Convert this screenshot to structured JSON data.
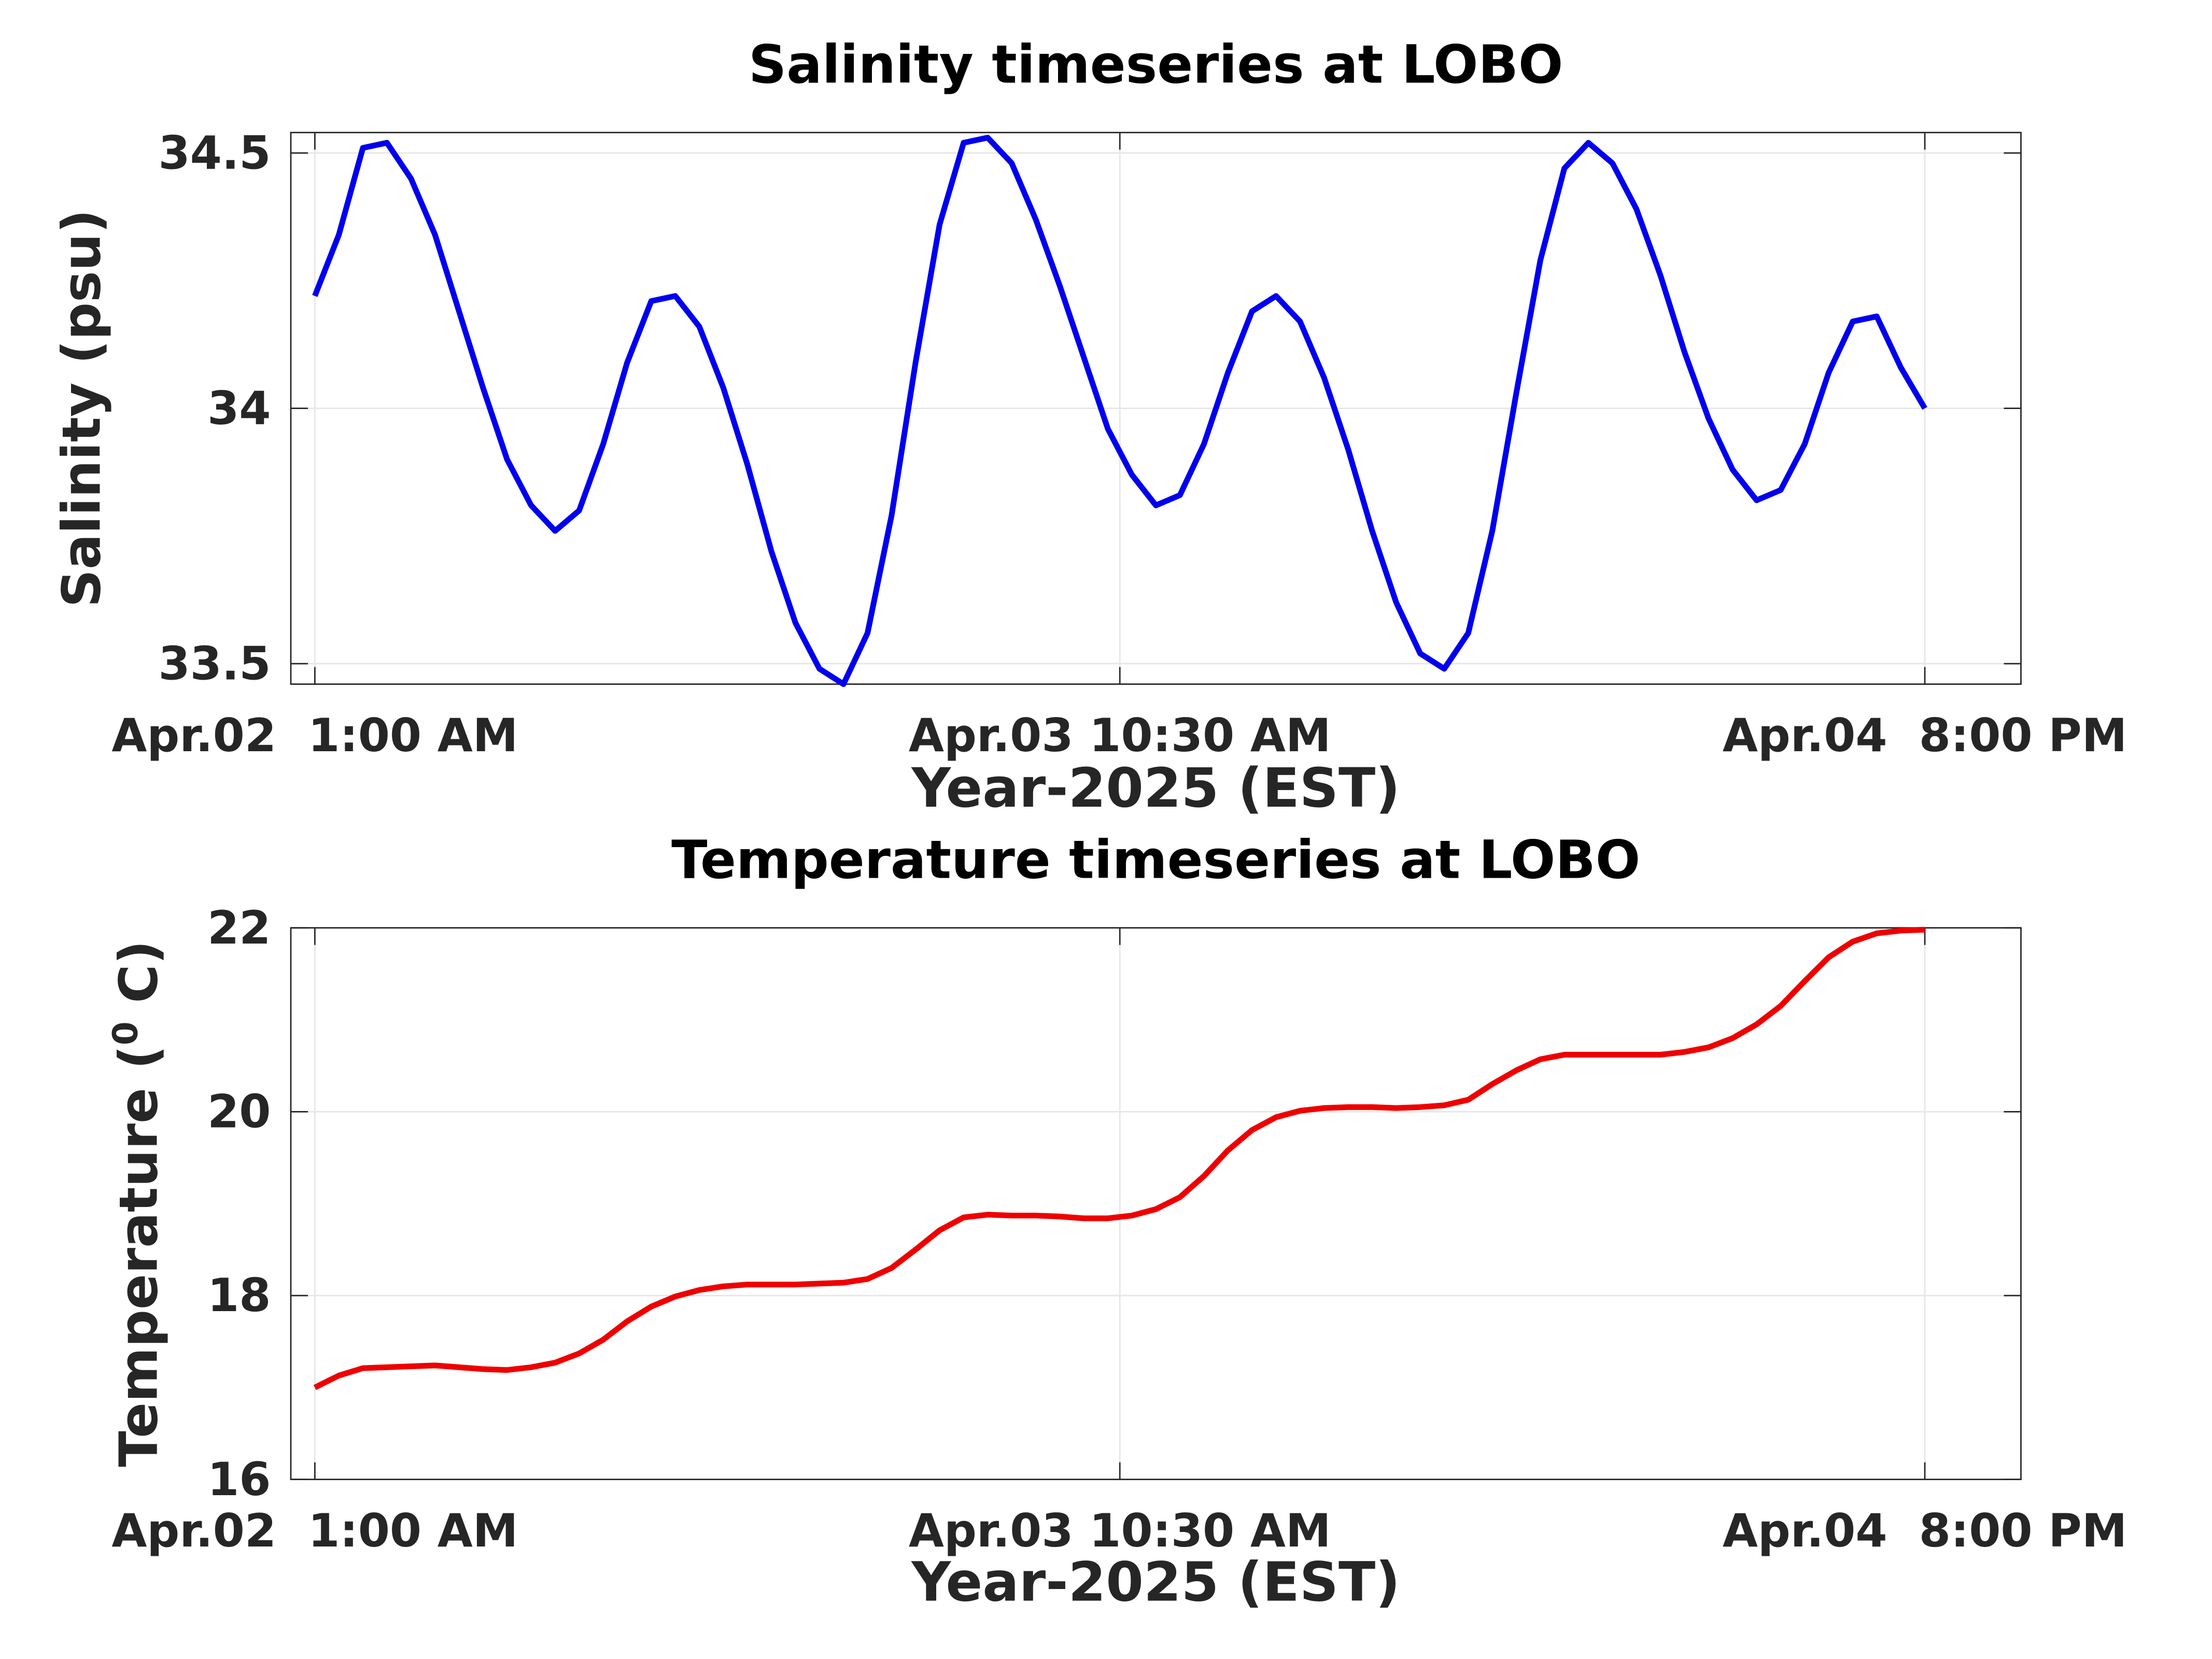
{
  "chart_data": [
    {
      "type": "line",
      "title": "Salinity timeseries at LOBO",
      "xlabel": "Year-2025 (EST)",
      "ylabel": [
        "Salinity (psu)"
      ],
      "grid": true,
      "xlim": [
        "2025-04-02T00:00",
        "2025-04-05T00:00"
      ],
      "xticks": [
        {
          "value": "2025-04-02T01:00",
          "label": "Apr.02  1:00 AM"
        },
        {
          "value": "2025-04-03T10:30",
          "label": "Apr.03 10:30 AM"
        },
        {
          "value": "2025-04-04T20:00",
          "label": "Apr.04  8:00 PM"
        }
      ],
      "ylim": [
        33.46,
        34.54
      ],
      "yticks": [
        33.5,
        34,
        34.5
      ],
      "x": [
        "2025-04-02T01:00",
        "2025-04-02T02:00",
        "2025-04-02T03:00",
        "2025-04-02T04:00",
        "2025-04-02T05:00",
        "2025-04-02T06:00",
        "2025-04-02T07:00",
        "2025-04-02T08:00",
        "2025-04-02T09:00",
        "2025-04-02T10:00",
        "2025-04-02T11:00",
        "2025-04-02T12:00",
        "2025-04-02T13:00",
        "2025-04-02T14:00",
        "2025-04-02T15:00",
        "2025-04-02T16:00",
        "2025-04-02T17:00",
        "2025-04-02T18:00",
        "2025-04-02T19:00",
        "2025-04-02T20:00",
        "2025-04-02T21:00",
        "2025-04-02T22:00",
        "2025-04-02T23:00",
        "2025-04-03T00:00",
        "2025-04-03T01:00",
        "2025-04-03T02:00",
        "2025-04-03T03:00",
        "2025-04-03T04:00",
        "2025-04-03T05:00",
        "2025-04-03T06:00",
        "2025-04-03T07:00",
        "2025-04-03T08:00",
        "2025-04-03T09:00",
        "2025-04-03T10:00",
        "2025-04-03T11:00",
        "2025-04-03T12:00",
        "2025-04-03T13:00",
        "2025-04-03T14:00",
        "2025-04-03T15:00",
        "2025-04-03T16:00",
        "2025-04-03T17:00",
        "2025-04-03T18:00",
        "2025-04-03T19:00",
        "2025-04-03T20:00",
        "2025-04-03T21:00",
        "2025-04-03T22:00",
        "2025-04-03T23:00",
        "2025-04-04T00:00",
        "2025-04-04T01:00",
        "2025-04-04T02:00",
        "2025-04-04T03:00",
        "2025-04-04T04:00",
        "2025-04-04T05:00",
        "2025-04-04T06:00",
        "2025-04-04T07:00",
        "2025-04-04T08:00",
        "2025-04-04T09:00",
        "2025-04-04T10:00",
        "2025-04-04T11:00",
        "2025-04-04T12:00",
        "2025-04-04T13:00",
        "2025-04-04T14:00",
        "2025-04-04T15:00",
        "2025-04-04T16:00",
        "2025-04-04T17:00",
        "2025-04-04T18:00",
        "2025-04-04T19:00",
        "2025-04-04T20:00"
      ],
      "series": [
        {
          "color": "#0000ee",
          "values": [
            34.22,
            34.34,
            34.51,
            34.52,
            34.45,
            34.34,
            34.19,
            34.04,
            33.9,
            33.81,
            33.76,
            33.8,
            33.93,
            34.09,
            34.21,
            34.22,
            34.16,
            34.04,
            33.89,
            33.72,
            33.58,
            33.49,
            33.46,
            33.56,
            33.79,
            34.09,
            34.36,
            34.52,
            34.53,
            34.48,
            34.37,
            34.24,
            34.1,
            33.96,
            33.87,
            33.81,
            33.83,
            33.93,
            34.07,
            34.19,
            34.22,
            34.17,
            34.06,
            33.92,
            33.76,
            33.62,
            33.52,
            33.49,
            33.56,
            33.76,
            34.03,
            34.29,
            34.47,
            34.52,
            34.48,
            34.39,
            34.26,
            34.11,
            33.98,
            33.88,
            33.82,
            33.84,
            33.93,
            34.07,
            34.17,
            34.18,
            34.08,
            34.0
          ]
        }
      ]
    },
    {
      "type": "line",
      "title": "Temperature timeseries at LOBO",
      "xlabel": "Year-2025 (EST)",
      "ylabel": [
        "Temperature (",
        "0",
        " C)"
      ],
      "grid": true,
      "xlim": [
        "2025-04-02T00:00",
        "2025-04-05T00:00"
      ],
      "xticks": [
        {
          "value": "2025-04-02T01:00",
          "label": "Apr.02  1:00 AM"
        },
        {
          "value": "2025-04-03T10:30",
          "label": "Apr.03 10:30 AM"
        },
        {
          "value": "2025-04-04T20:00",
          "label": "Apr.04  8:00 PM"
        }
      ],
      "ylim": [
        16,
        22
      ],
      "yticks": [
        16,
        18,
        20,
        22
      ],
      "x": [
        "2025-04-02T01:00",
        "2025-04-02T02:00",
        "2025-04-02T03:00",
        "2025-04-02T04:00",
        "2025-04-02T05:00",
        "2025-04-02T06:00",
        "2025-04-02T07:00",
        "2025-04-02T08:00",
        "2025-04-02T09:00",
        "2025-04-02T10:00",
        "2025-04-02T11:00",
        "2025-04-02T12:00",
        "2025-04-02T13:00",
        "2025-04-02T14:00",
        "2025-04-02T15:00",
        "2025-04-02T16:00",
        "2025-04-02T17:00",
        "2025-04-02T18:00",
        "2025-04-02T19:00",
        "2025-04-02T20:00",
        "2025-04-02T21:00",
        "2025-04-02T22:00",
        "2025-04-02T23:00",
        "2025-04-03T00:00",
        "2025-04-03T01:00",
        "2025-04-03T02:00",
        "2025-04-03T03:00",
        "2025-04-03T04:00",
        "2025-04-03T05:00",
        "2025-04-03T06:00",
        "2025-04-03T07:00",
        "2025-04-03T08:00",
        "2025-04-03T09:00",
        "2025-04-03T10:00",
        "2025-04-03T11:00",
        "2025-04-03T12:00",
        "2025-04-03T13:00",
        "2025-04-03T14:00",
        "2025-04-03T15:00",
        "2025-04-03T16:00",
        "2025-04-03T17:00",
        "2025-04-03T18:00",
        "2025-04-03T19:00",
        "2025-04-03T20:00",
        "2025-04-03T21:00",
        "2025-04-03T22:00",
        "2025-04-03T23:00",
        "2025-04-04T00:00",
        "2025-04-04T01:00",
        "2025-04-04T02:00",
        "2025-04-04T03:00",
        "2025-04-04T04:00",
        "2025-04-04T05:00",
        "2025-04-04T06:00",
        "2025-04-04T07:00",
        "2025-04-04T08:00",
        "2025-04-04T09:00",
        "2025-04-04T10:00",
        "2025-04-04T11:00",
        "2025-04-04T12:00",
        "2025-04-04T13:00",
        "2025-04-04T14:00",
        "2025-04-04T15:00",
        "2025-04-04T16:00",
        "2025-04-04T17:00",
        "2025-04-04T18:00",
        "2025-04-04T19:00",
        "2025-04-04T20:00"
      ],
      "series": [
        {
          "color": "#ee0000",
          "values": [
            17.0,
            17.13,
            17.21,
            17.22,
            17.23,
            17.24,
            17.22,
            17.2,
            17.19,
            17.22,
            17.27,
            17.37,
            17.52,
            17.72,
            17.88,
            17.99,
            18.06,
            18.1,
            18.12,
            18.12,
            18.12,
            18.13,
            18.14,
            18.18,
            18.3,
            18.5,
            18.71,
            18.85,
            18.88,
            18.87,
            18.87,
            18.86,
            18.84,
            18.84,
            18.87,
            18.94,
            19.07,
            19.3,
            19.58,
            19.8,
            19.94,
            20.01,
            20.04,
            20.05,
            20.05,
            20.04,
            20.05,
            20.07,
            20.13,
            20.3,
            20.45,
            20.57,
            20.62,
            20.62,
            20.62,
            20.62,
            20.62,
            20.65,
            20.7,
            20.8,
            20.95,
            21.15,
            21.42,
            21.68,
            21.85,
            21.94,
            21.97,
            21.98
          ]
        }
      ]
    }
  ]
}
